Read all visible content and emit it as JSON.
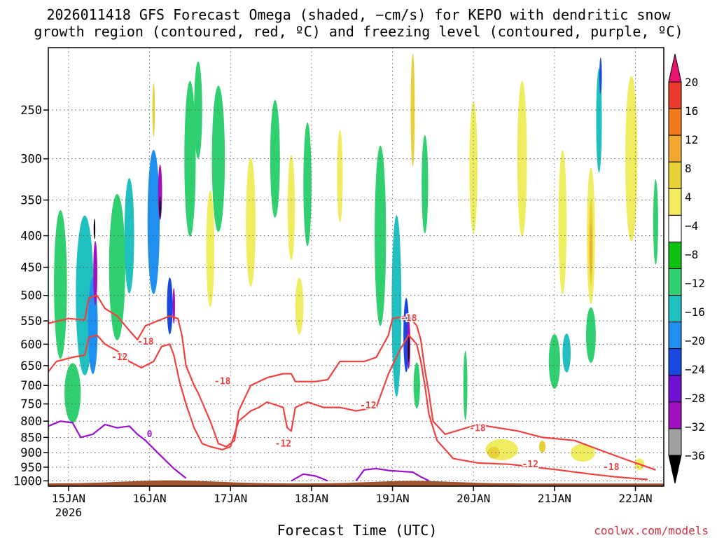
{
  "chart_data": {
    "type": "heatmap",
    "title_line1": "2026011418 GFS Forecast Omega (shaded, −cm/s) for KEPO with dendritic snow",
    "title_line2": "growth region (contoured, red, ºC) and freezing level (contoured, purple, ºC)",
    "xlabel": "Forecast Time (UTC)",
    "ylabel": "Pressure (hPa)",
    "credit": "coolwx.com/models",
    "x_range_days": [
      0,
      7.6
    ],
    "x_ticks": [
      {
        "day": 0.25,
        "label": "15JAN",
        "sublabel": "2026"
      },
      {
        "day": 1.25,
        "label": "16JAN"
      },
      {
        "day": 2.25,
        "label": "17JAN"
      },
      {
        "day": 3.25,
        "label": "18JAN"
      },
      {
        "day": 4.25,
        "label": "19JAN"
      },
      {
        "day": 5.25,
        "label": "20JAN"
      },
      {
        "day": 6.25,
        "label": "21JAN"
      },
      {
        "day": 7.25,
        "label": "22JAN"
      }
    ],
    "y_ticks": [
      250,
      300,
      350,
      400,
      450,
      500,
      550,
      600,
      650,
      700,
      750,
      800,
      850,
      900,
      950,
      1000
    ],
    "y_range_hpa": [
      1020,
      198
    ],
    "colorbar": {
      "levels": [
        -36,
        -32,
        -28,
        -24,
        -20,
        -16,
        -12,
        -8,
        -4,
        4,
        8,
        12,
        16,
        20
      ],
      "labels": [
        "20",
        "16",
        "12",
        "8",
        "4",
        "−4",
        "−8",
        "−12",
        "−16",
        "−20",
        "−24",
        "−28",
        "−32",
        "−36"
      ],
      "colors_top_to_bottom": [
        "#e8146e",
        "#e83a2c",
        "#ef7a1e",
        "#f0a830",
        "#e8d038",
        "#f0ec60",
        "#ffffff",
        "#10c010",
        "#30d070",
        "#20c0c0",
        "#2090f0",
        "#1848e0",
        "#7010d0",
        "#a010c0",
        "#a0a0a0",
        "#000000"
      ]
    },
    "red_contours": [
      {
        "label": "-18",
        "points": [
          [
            0,
            555
          ],
          [
            0.25,
            545
          ],
          [
            0.45,
            548
          ],
          [
            0.5,
            505
          ],
          [
            0.6,
            500
          ],
          [
            0.7,
            525
          ],
          [
            0.85,
            540
          ],
          [
            1.0,
            570
          ],
          [
            1.1,
            590
          ],
          [
            1.2,
            560
          ],
          [
            1.35,
            550
          ],
          [
            1.5,
            540
          ],
          [
            1.6,
            545
          ],
          [
            1.65,
            580
          ],
          [
            1.7,
            650
          ],
          [
            1.8,
            700
          ],
          [
            1.85,
            720
          ],
          [
            2.0,
            800
          ],
          [
            2.1,
            870
          ],
          [
            2.2,
            880
          ],
          [
            2.3,
            860
          ],
          [
            2.35,
            770
          ],
          [
            2.5,
            700
          ],
          [
            2.7,
            680
          ],
          [
            2.9,
            670
          ],
          [
            3.0,
            670
          ],
          [
            3.05,
            690
          ],
          [
            3.3,
            690
          ],
          [
            3.45,
            685
          ],
          [
            3.6,
            640
          ],
          [
            3.75,
            640
          ],
          [
            3.9,
            640
          ],
          [
            4.05,
            630
          ],
          [
            4.2,
            580
          ],
          [
            4.25,
            545
          ],
          [
            4.45,
            540
          ],
          [
            4.55,
            560
          ],
          [
            4.6,
            590
          ],
          [
            4.65,
            660
          ],
          [
            4.7,
            720
          ],
          [
            4.75,
            800
          ],
          [
            4.9,
            840
          ],
          [
            5.3,
            810
          ],
          [
            5.8,
            830
          ],
          [
            6.1,
            850
          ],
          [
            6.5,
            860
          ],
          [
            6.7,
            880
          ],
          [
            7.0,
            910
          ],
          [
            7.2,
            930
          ],
          [
            7.5,
            960
          ]
        ]
      },
      {
        "label": "-12",
        "points": [
          [
            0,
            665
          ],
          [
            0.1,
            640
          ],
          [
            0.3,
            630
          ],
          [
            0.45,
            625
          ],
          [
            0.5,
            585
          ],
          [
            0.6,
            580
          ],
          [
            0.7,
            600
          ],
          [
            0.85,
            615
          ],
          [
            1.0,
            640
          ],
          [
            1.15,
            655
          ],
          [
            1.3,
            640
          ],
          [
            1.4,
            605
          ],
          [
            1.5,
            600
          ],
          [
            1.55,
            625
          ],
          [
            1.62,
            690
          ],
          [
            1.7,
            750
          ],
          [
            1.8,
            820
          ],
          [
            1.9,
            870
          ],
          [
            2.0,
            880
          ],
          [
            2.15,
            890
          ],
          [
            2.25,
            880
          ],
          [
            2.35,
            800
          ],
          [
            2.5,
            770
          ],
          [
            2.6,
            760
          ],
          [
            2.7,
            745
          ],
          [
            2.9,
            760
          ],
          [
            2.95,
            820
          ],
          [
            3.0,
            830
          ],
          [
            3.05,
            760
          ],
          [
            3.2,
            745
          ],
          [
            3.4,
            760
          ],
          [
            3.6,
            760
          ],
          [
            3.8,
            770
          ],
          [
            4.05,
            760
          ],
          [
            4.2,
            670
          ],
          [
            4.35,
            610
          ],
          [
            4.45,
            580
          ],
          [
            4.55,
            600
          ],
          [
            4.6,
            640
          ],
          [
            4.65,
            700
          ],
          [
            4.7,
            780
          ],
          [
            4.8,
            860
          ],
          [
            5.0,
            920
          ],
          [
            5.3,
            935
          ],
          [
            5.7,
            940
          ],
          [
            6.0,
            950
          ],
          [
            6.3,
            960
          ],
          [
            6.7,
            975
          ],
          [
            7.0,
            985
          ],
          [
            7.4,
            995
          ]
        ]
      }
    ],
    "purple_contours": [
      {
        "label": "0",
        "points": [
          [
            0,
            815
          ],
          [
            0.15,
            800
          ],
          [
            0.3,
            805
          ],
          [
            0.4,
            850
          ],
          [
            0.55,
            840
          ],
          [
            0.7,
            810
          ],
          [
            0.85,
            820
          ],
          [
            1.0,
            815
          ],
          [
            1.1,
            840
          ],
          [
            1.2,
            860
          ],
          [
            1.35,
            900
          ],
          [
            1.55,
            955
          ],
          [
            1.7,
            990
          ]
        ]
      },
      {
        "label": "0",
        "points": [
          [
            3.0,
            1000
          ],
          [
            3.15,
            975
          ],
          [
            3.3,
            982
          ],
          [
            3.45,
            1000
          ]
        ]
      },
      {
        "label": "0",
        "points": [
          [
            3.8,
            1000
          ],
          [
            3.9,
            960
          ],
          [
            4.05,
            955
          ],
          [
            4.2,
            962
          ],
          [
            4.35,
            965
          ],
          [
            4.5,
            968
          ],
          [
            4.6,
            985
          ],
          [
            4.7,
            1000
          ]
        ]
      }
    ],
    "contour_labels": [
      {
        "text": "-18",
        "day": 1.2,
        "p": 595
      },
      {
        "text": "-12",
        "day": 0.88,
        "p": 630
      },
      {
        "text": "-18",
        "day": 2.15,
        "p": 690
      },
      {
        "text": "-12",
        "day": 2.9,
        "p": 870
      },
      {
        "text": "-12",
        "day": 3.95,
        "p": 755
      },
      {
        "text": "-18",
        "day": 4.45,
        "p": 545
      },
      {
        "text": "-18",
        "day": 5.3,
        "p": 822
      },
      {
        "text": "-12",
        "day": 5.95,
        "p": 940
      },
      {
        "text": "-18",
        "day": 6.95,
        "p": 950
      },
      {
        "text": "0",
        "day": 1.25,
        "p": 840
      }
    ],
    "omega_blobs": [
      {
        "day": 0.15,
        "p": 480,
        "dd": 0.16,
        "dp": 260,
        "v": -8
      },
      {
        "day": 0.45,
        "p": 500,
        "dd": 0.22,
        "dp": 290,
        "v": -12
      },
      {
        "day": 0.55,
        "p": 560,
        "dd": 0.12,
        "dp": 200,
        "v": -16
      },
      {
        "day": 0.58,
        "p": 460,
        "dd": 0.05,
        "dp": 110,
        "v": -28
      },
      {
        "day": 0.57,
        "p": 390,
        "dd": 0.02,
        "dp": 30,
        "v": -36
      },
      {
        "day": 0.85,
        "p": 450,
        "dd": 0.2,
        "dp": 240,
        "v": -8
      },
      {
        "day": 1.0,
        "p": 400,
        "dd": 0.12,
        "dp": 170,
        "v": -12
      },
      {
        "day": 1.3,
        "p": 380,
        "dd": 0.15,
        "dp": 200,
        "v": -16
      },
      {
        "day": 1.38,
        "p": 340,
        "dd": 0.05,
        "dp": 70,
        "v": -28
      },
      {
        "day": 1.38,
        "p": 360,
        "dd": 0.02,
        "dp": 30,
        "v": -36
      },
      {
        "day": 1.5,
        "p": 520,
        "dd": 0.07,
        "dp": 110,
        "v": -20
      },
      {
        "day": 1.55,
        "p": 520,
        "dd": 0.03,
        "dp": 70,
        "v": -28
      },
      {
        "day": 1.75,
        "p": 300,
        "dd": 0.14,
        "dp": 170,
        "v": -8
      },
      {
        "day": 2.1,
        "p": 300,
        "dd": 0.16,
        "dp": 160,
        "v": -8
      },
      {
        "day": 2.8,
        "p": 300,
        "dd": 0.12,
        "dp": 130,
        "v": -8
      },
      {
        "day": 3.2,
        "p": 330,
        "dd": 0.1,
        "dp": 150,
        "v": -8
      },
      {
        "day": 4.1,
        "p": 400,
        "dd": 0.14,
        "dp": 260,
        "v": -8
      },
      {
        "day": 4.3,
        "p": 520,
        "dd": 0.12,
        "dp": 340,
        "v": -12
      },
      {
        "day": 4.42,
        "p": 580,
        "dd": 0.07,
        "dp": 160,
        "v": -20
      },
      {
        "day": 4.45,
        "p": 600,
        "dd": 0.04,
        "dp": 110,
        "v": -28
      },
      {
        "day": 4.45,
        "p": 610,
        "dd": 0.02,
        "dp": 60,
        "v": -36
      },
      {
        "day": 4.55,
        "p": 700,
        "dd": 0.08,
        "dp": 120,
        "v": -8
      },
      {
        "day": 4.65,
        "p": 330,
        "dd": 0.08,
        "dp": 120,
        "v": -8
      },
      {
        "day": 5.15,
        "p": 700,
        "dd": 0.05,
        "dp": 180,
        "v": -8
      },
      {
        "day": 6.25,
        "p": 640,
        "dd": 0.14,
        "dp": 130,
        "v": -8
      },
      {
        "day": 6.4,
        "p": 620,
        "dd": 0.1,
        "dp": 90,
        "v": -12
      },
      {
        "day": 6.7,
        "p": 580,
        "dd": 0.12,
        "dp": 120,
        "v": -8
      },
      {
        "day": 6.8,
        "p": 260,
        "dd": 0.07,
        "dp": 100,
        "v": -12
      },
      {
        "day": 6.82,
        "p": 220,
        "dd": 0.03,
        "dp": 30,
        "v": -20
      },
      {
        "day": 0.3,
        "p": 720,
        "dd": 0.2,
        "dp": 160,
        "v": -8
      },
      {
        "day": 1.85,
        "p": 250,
        "dd": 0.1,
        "dp": 90,
        "v": -8
      },
      {
        "day": 7.5,
        "p": 380,
        "dd": 0.06,
        "dp": 120,
        "v": -8
      }
    ],
    "omega_pos_blobs": [
      {
        "day": 2.0,
        "p": 420,
        "dd": 0.1,
        "dp": 180,
        "v": 5
      },
      {
        "day": 2.5,
        "p": 380,
        "dd": 0.12,
        "dp": 180,
        "v": 5
      },
      {
        "day": 3.0,
        "p": 360,
        "dd": 0.09,
        "dp": 140,
        "v": 5
      },
      {
        "day": 3.1,
        "p": 520,
        "dd": 0.1,
        "dp": 110,
        "v": 5
      },
      {
        "day": 3.6,
        "p": 320,
        "dd": 0.07,
        "dp": 110,
        "v": 5
      },
      {
        "day": 5.25,
        "p": 310,
        "dd": 0.1,
        "dp": 150,
        "v": 5
      },
      {
        "day": 5.85,
        "p": 300,
        "dd": 0.12,
        "dp": 170,
        "v": 5
      },
      {
        "day": 6.35,
        "p": 380,
        "dd": 0.1,
        "dp": 200,
        "v": 5
      },
      {
        "day": 6.7,
        "p": 400,
        "dd": 0.1,
        "dp": 200,
        "v": 5
      },
      {
        "day": 6.7,
        "p": 410,
        "dd": 0.05,
        "dp": 130,
        "v": 9
      },
      {
        "day": 6.7,
        "p": 420,
        "dd": 0.02,
        "dp": 80,
        "v": 13
      },
      {
        "day": 7.2,
        "p": 300,
        "dd": 0.15,
        "dp": 180,
        "v": 5
      },
      {
        "day": 5.6,
        "p": 890,
        "dd": 0.4,
        "dp": 70,
        "v": 5
      },
      {
        "day": 5.5,
        "p": 900,
        "dd": 0.15,
        "dp": 40,
        "v": 9
      },
      {
        "day": 6.1,
        "p": 880,
        "dd": 0.08,
        "dp": 40,
        "v": 9
      },
      {
        "day": 6.6,
        "p": 900,
        "dd": 0.3,
        "dp": 60,
        "v": 5
      },
      {
        "day": 7.3,
        "p": 940,
        "dd": 0.12,
        "dp": 40,
        "v": 5
      },
      {
        "day": 4.5,
        "p": 250,
        "dd": 0.05,
        "dp": 110,
        "v": 9
      },
      {
        "day": 1.3,
        "p": 250,
        "dd": 0.03,
        "dp": 50,
        "v": 9
      }
    ]
  }
}
